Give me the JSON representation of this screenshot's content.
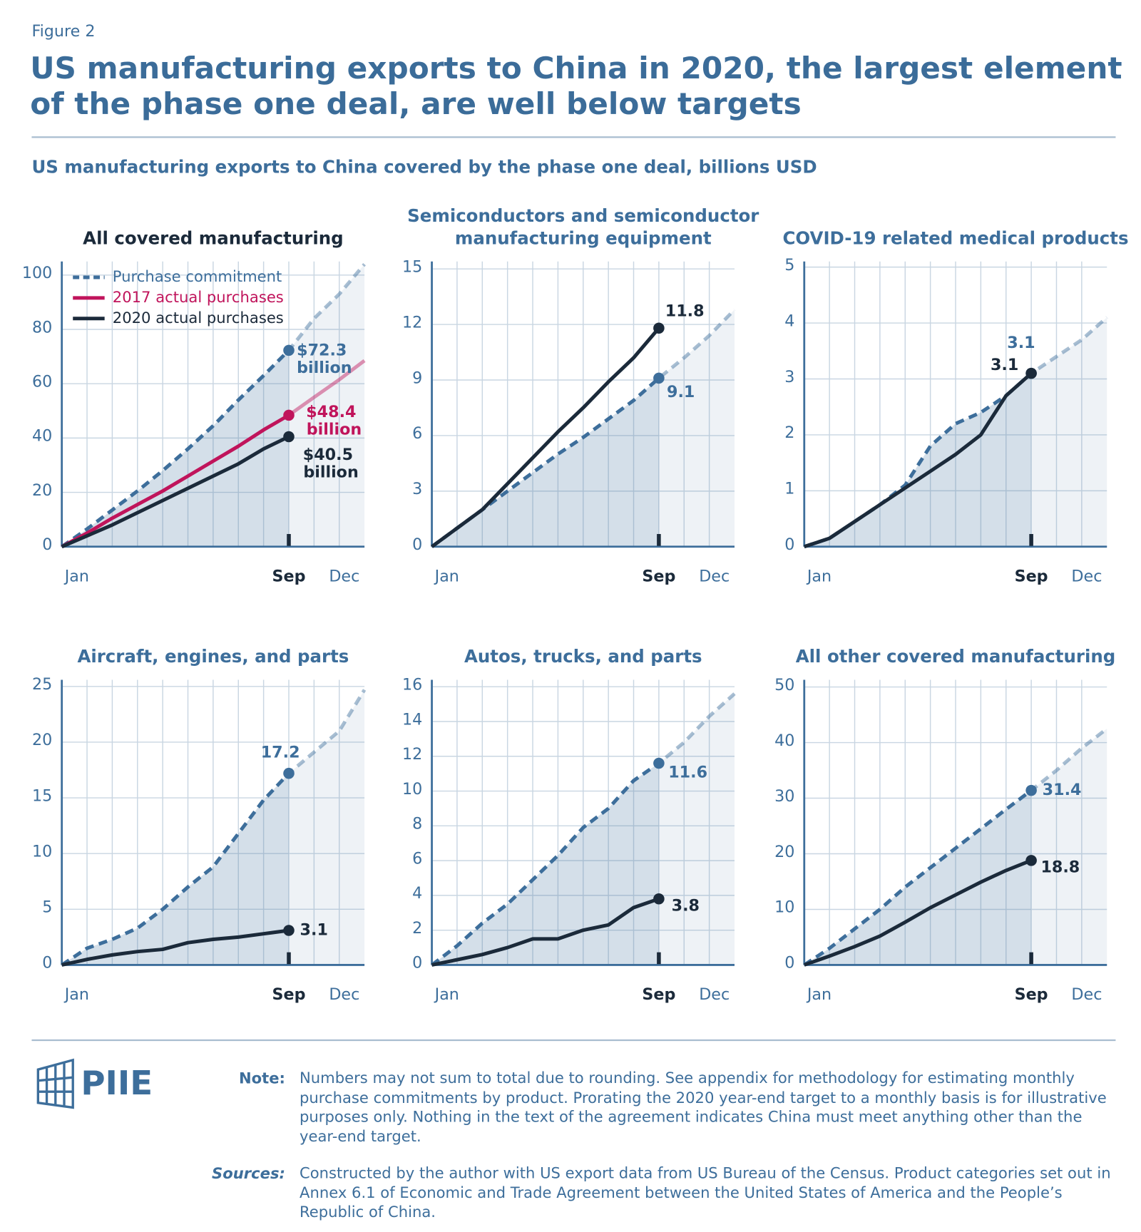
{
  "figure_label": "Figure 2",
  "title": "US manufacturing exports to China in 2020, the largest element of the phase one deal, are well below targets",
  "subtitle": "US manufacturing exports to China covered by the phase one deal, billions USD",
  "chart_data": [
    {
      "type": "line",
      "title": "All covered manufacturing",
      "x": [
        0,
        1,
        2,
        3,
        4,
        5,
        6,
        7,
        8,
        9,
        10,
        11,
        12
      ],
      "xlim": [
        0,
        12
      ],
      "xticks": [
        {
          "value": 0.6,
          "label": "Jan"
        },
        {
          "value": 9,
          "label": "Sep"
        },
        {
          "value": 11.2,
          "label": "Dec"
        }
      ],
      "ylim": [
        0,
        105
      ],
      "yticks": [
        0,
        20,
        40,
        60,
        80,
        100
      ],
      "grid": true,
      "legend": "upper left",
      "series": [
        {
          "name": "Purchase commitment",
          "color": "#3d6e9b",
          "dash": true,
          "fill": true,
          "values": [
            0,
            6.5,
            13.5,
            20.5,
            28,
            36,
            44.5,
            54,
            63,
            72.3,
            84,
            93,
            104
          ],
          "value_labels": [
            null,
            null,
            null,
            null,
            null,
            null,
            null,
            null,
            null,
            "$72.3 billion",
            null,
            null,
            null
          ]
        },
        {
          "name": "2017 actual purchases",
          "color": "#c0145b",
          "values": [
            0,
            5,
            10.5,
            15.5,
            20.5,
            26,
            31.5,
            37,
            43,
            48.4,
            55,
            61.5,
            68.5
          ],
          "value_labels": [
            null,
            null,
            null,
            null,
            null,
            null,
            null,
            null,
            null,
            "$48.4 billion",
            null,
            null,
            null
          ]
        },
        {
          "name": "2020 actual purchases",
          "color": "#1b2a3a",
          "values": [
            0,
            4,
            8,
            12.5,
            17,
            21.5,
            26,
            30.5,
            36,
            40.5,
            null,
            null,
            null
          ],
          "value_labels": [
            null,
            null,
            null,
            null,
            null,
            null,
            null,
            null,
            null,
            "$40.5 billion",
            null,
            null,
            null
          ]
        }
      ]
    },
    {
      "type": "line",
      "title": "Semiconductors and semiconductor manufacturing equipment",
      "x": [
        0,
        1,
        2,
        3,
        4,
        5,
        6,
        7,
        8,
        9,
        10,
        11,
        12
      ],
      "xlim": [
        0,
        12
      ],
      "xticks": [
        {
          "value": 0.6,
          "label": "Jan"
        },
        {
          "value": 9,
          "label": "Sep"
        },
        {
          "value": 11.2,
          "label": "Dec"
        }
      ],
      "ylim": [
        0,
        15.4
      ],
      "yticks": [
        0,
        3,
        6,
        9,
        12,
        15
      ],
      "grid": true,
      "series": [
        {
          "color": "#3d6e9b",
          "dash": true,
          "fill": true,
          "values": [
            0,
            1,
            2,
            3,
            4,
            5,
            5.9,
            6.9,
            7.9,
            9.1,
            10.2,
            11.4,
            12.8
          ],
          "value_labels": [
            null,
            null,
            null,
            null,
            null,
            null,
            null,
            null,
            null,
            "9.1",
            null,
            null,
            null
          ]
        },
        {
          "color": "#1b2a3a",
          "values": [
            0,
            1,
            2,
            3.4,
            4.8,
            6.2,
            7.5,
            8.9,
            10.2,
            11.8,
            null,
            null,
            null
          ],
          "value_labels": [
            null,
            null,
            null,
            null,
            null,
            null,
            null,
            null,
            null,
            "11.8",
            null,
            null,
            null
          ]
        }
      ]
    },
    {
      "type": "line",
      "title": "COVID-19 related medical products",
      "x": [
        0,
        1,
        2,
        3,
        4,
        5,
        6,
        7,
        8,
        9,
        10,
        11,
        12
      ],
      "xlim": [
        0,
        12
      ],
      "xticks": [
        {
          "value": 0.6,
          "label": "Jan"
        },
        {
          "value": 9,
          "label": "Sep"
        },
        {
          "value": 11.2,
          "label": "Dec"
        }
      ],
      "ylim": [
        0,
        5.1
      ],
      "yticks": [
        0,
        1,
        2,
        3,
        4,
        5
      ],
      "grid": true,
      "series": [
        {
          "color": "#3d6e9b",
          "dash": true,
          "fill": true,
          "values": [
            0,
            0.15,
            0.45,
            0.75,
            1.1,
            1.8,
            2.2,
            2.4,
            2.7,
            3.1,
            3.4,
            3.7,
            4.1
          ],
          "value_labels": [
            null,
            null,
            null,
            null,
            null,
            null,
            null,
            null,
            null,
            "3.1",
            null,
            null,
            null
          ]
        },
        {
          "color": "#1b2a3a",
          "values": [
            0,
            0.15,
            0.45,
            0.75,
            1.05,
            1.35,
            1.65,
            2,
            2.7,
            3.1,
            null,
            null,
            null
          ],
          "value_labels": [
            null,
            null,
            null,
            null,
            null,
            null,
            null,
            null,
            null,
            "3.1",
            null,
            null,
            null
          ]
        }
      ]
    },
    {
      "type": "line",
      "title": "Aircraft, engines, and parts",
      "x": [
        0,
        1,
        2,
        3,
        4,
        5,
        6,
        7,
        8,
        9,
        10,
        11,
        12
      ],
      "xlim": [
        0,
        12
      ],
      "xticks": [
        {
          "value": 0.6,
          "label": "Jan"
        },
        {
          "value": 9,
          "label": "Sep"
        },
        {
          "value": 11.2,
          "label": "Dec"
        }
      ],
      "ylim": [
        0,
        25.6
      ],
      "yticks": [
        0,
        5,
        10,
        15,
        20,
        25
      ],
      "grid": true,
      "series": [
        {
          "color": "#3d6e9b",
          "dash": true,
          "fill": true,
          "values": [
            0,
            1.5,
            2.3,
            3.3,
            5,
            7,
            8.8,
            11.8,
            14.8,
            17.2,
            19.1,
            21,
            24.7
          ],
          "value_labels": [
            null,
            null,
            null,
            null,
            null,
            null,
            null,
            null,
            null,
            "17.2",
            null,
            null,
            null
          ]
        },
        {
          "color": "#1b2a3a",
          "values": [
            0,
            0.5,
            0.9,
            1.2,
            1.4,
            2,
            2.3,
            2.5,
            2.8,
            3.1,
            null,
            null,
            null
          ],
          "value_labels": [
            null,
            null,
            null,
            null,
            null,
            null,
            null,
            null,
            null,
            "3.1",
            null,
            null,
            null
          ]
        }
      ]
    },
    {
      "type": "line",
      "title": "Autos, trucks, and parts",
      "x": [
        0,
        1,
        2,
        3,
        4,
        5,
        6,
        7,
        8,
        9,
        10,
        11,
        12
      ],
      "xlim": [
        0,
        12
      ],
      "xticks": [
        {
          "value": 0.6,
          "label": "Jan"
        },
        {
          "value": 9,
          "label": "Sep"
        },
        {
          "value": 11.2,
          "label": "Dec"
        }
      ],
      "ylim": [
        0,
        16.4
      ],
      "yticks": [
        0,
        2,
        4,
        6,
        8,
        10,
        12,
        14,
        16
      ],
      "grid": true,
      "series": [
        {
          "color": "#3d6e9b",
          "dash": true,
          "fill": true,
          "values": [
            0,
            1.1,
            2.4,
            3.5,
            4.9,
            6.3,
            7.9,
            9,
            10.6,
            11.6,
            12.8,
            14.3,
            15.6
          ],
          "value_labels": [
            null,
            null,
            null,
            null,
            null,
            null,
            null,
            null,
            null,
            "11.6",
            null,
            null,
            null
          ]
        },
        {
          "color": "#1b2a3a",
          "values": [
            0,
            0.3,
            0.6,
            1,
            1.5,
            1.5,
            2,
            2.3,
            3.3,
            3.8,
            null,
            null,
            null
          ],
          "value_labels": [
            null,
            null,
            null,
            null,
            null,
            null,
            null,
            null,
            null,
            "3.8",
            null,
            null,
            null
          ]
        }
      ]
    },
    {
      "type": "line",
      "title": "All other covered manufacturing",
      "x": [
        0,
        1,
        2,
        3,
        4,
        5,
        6,
        7,
        8,
        9,
        10,
        11,
        12
      ],
      "xlim": [
        0,
        12
      ],
      "xticks": [
        {
          "value": 0.6,
          "label": "Jan"
        },
        {
          "value": 9,
          "label": "Sep"
        },
        {
          "value": 11.2,
          "label": "Dec"
        }
      ],
      "ylim": [
        0,
        51.3
      ],
      "yticks": [
        0,
        10,
        20,
        30,
        40,
        50
      ],
      "grid": true,
      "series": [
        {
          "color": "#3d6e9b",
          "dash": true,
          "fill": true,
          "values": [
            0,
            3,
            6.5,
            10,
            14,
            17.5,
            21,
            24.5,
            28,
            31.4,
            35,
            39,
            42.5
          ],
          "value_labels": [
            null,
            null,
            null,
            null,
            null,
            null,
            null,
            null,
            null,
            "31.4",
            null,
            null,
            null
          ]
        },
        {
          "color": "#1b2a3a",
          "values": [
            0,
            1.6,
            3.3,
            5.2,
            7.7,
            10.3,
            12.6,
            14.9,
            17,
            18.8,
            null,
            null,
            null
          ],
          "value_labels": [
            null,
            null,
            null,
            null,
            null,
            null,
            null,
            null,
            null,
            "18.8",
            null,
            null,
            null
          ]
        }
      ]
    }
  ],
  "logo": "PIIE",
  "note": {
    "label": "Note:",
    "text": "Numbers may not sum to total due to rounding. See appendix for methodology for estimating monthly purchase commitments by product. Prorating the 2020 year-end target to a monthly basis is for illustrative purposes only. Nothing in the text of the agreement indicates China must meet anything other than the year-end target."
  },
  "sources": {
    "label": "Sources:",
    "text": "Constructed by the author with US export data from US Bureau of the Census. Product categories set out in Annex 6.1 of Economic and Trade Agreement between the United States of America and the People’s Republic of China."
  }
}
